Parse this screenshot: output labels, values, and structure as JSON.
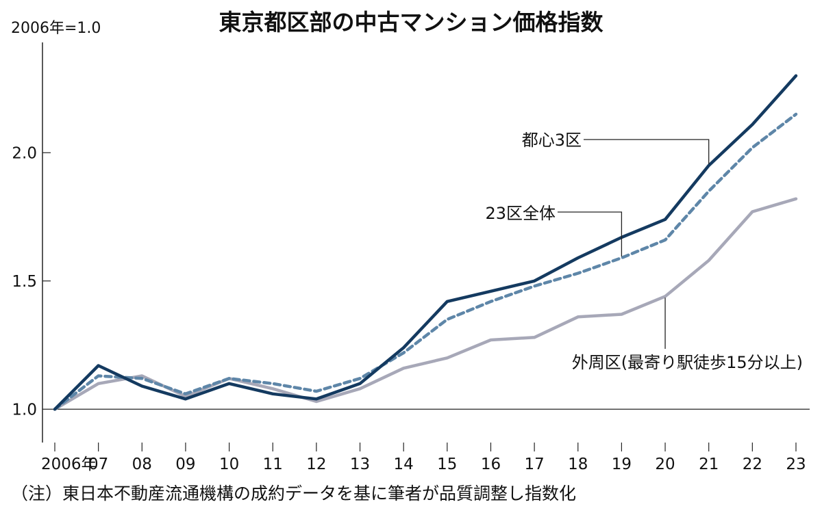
{
  "title": "東京都区部の中古マンション価格指数",
  "unit_label": "2006年=1.0",
  "footnote": "（注）東日本不動産流通機構の成約データを基に筆者が品質調整し指数化",
  "chart_data": {
    "type": "line",
    "title": "東京都区部の中古マンション価格指数",
    "x_tick_labels": [
      "2006年",
      "07",
      "08",
      "09",
      "10",
      "11",
      "12",
      "13",
      "14",
      "15",
      "16",
      "17",
      "18",
      "19",
      "20",
      "21",
      "22",
      "23"
    ],
    "x": [
      2006,
      2007,
      2008,
      2009,
      2010,
      2011,
      2012,
      2013,
      2014,
      2015,
      2016,
      2017,
      2018,
      2019,
      2020,
      2021,
      2022,
      2023
    ],
    "y_ticks": [
      1.0,
      1.5,
      2.0
    ],
    "y_tick_labels": [
      "1.0",
      "1.5",
      "2.0"
    ],
    "ylim": [
      0.87,
      2.43
    ],
    "xlim": [
      2006,
      2023
    ],
    "grid": false,
    "series": [
      {
        "name": "都心3区",
        "color": "#143a60",
        "style": "solid",
        "values": [
          1.0,
          1.17,
          1.09,
          1.04,
          1.1,
          1.06,
          1.04,
          1.1,
          1.24,
          1.42,
          1.46,
          1.5,
          1.59,
          1.67,
          1.74,
          1.95,
          2.11,
          2.3
        ]
      },
      {
        "name": "23区全体",
        "color": "#5e86a8",
        "style": "dashed",
        "values": [
          1.0,
          1.13,
          1.12,
          1.06,
          1.12,
          1.1,
          1.07,
          1.12,
          1.22,
          1.35,
          1.42,
          1.48,
          1.53,
          1.59,
          1.66,
          1.85,
          2.02,
          2.15
        ]
      },
      {
        "name": "外周区(最寄り駅徒歩15分以上)",
        "color": "#a7a8b8",
        "style": "solid",
        "values": [
          1.0,
          1.1,
          1.13,
          1.05,
          1.12,
          1.08,
          1.03,
          1.08,
          1.16,
          1.2,
          1.27,
          1.28,
          1.36,
          1.37,
          1.44,
          1.58,
          1.77,
          1.82
        ]
      }
    ]
  }
}
